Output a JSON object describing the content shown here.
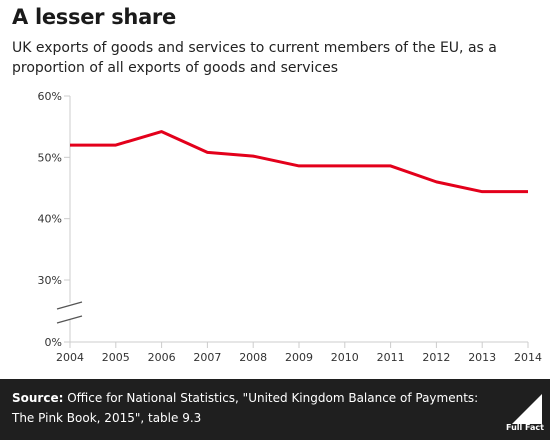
{
  "header": {
    "title": "A lesser share",
    "subtitle": "UK exports of goods and services to current members of the EU, as a proportion of all exports of goods and services"
  },
  "footer": {
    "source_label": "Source:",
    "source_text": " Office for National Statistics, \"United Kingdom Balance of Payments: The Pink Book, 2015\", table 9.3",
    "logo_text": "Full Fact"
  },
  "colors": {
    "line": "#e3001b",
    "axis": "#cccccc",
    "text": "#333333",
    "footer_bg": "#1f1f1f"
  },
  "chart_data": {
    "type": "line",
    "title": "A lesser share",
    "subtitle": "UK exports of goods and services to current members of the EU, as a proportion of all exports of goods and services",
    "x": [
      2004,
      2005,
      2006,
      2007,
      2008,
      2009,
      2010,
      2011,
      2012,
      2013,
      2014
    ],
    "series": [
      {
        "values": [
          52,
          52,
          54.2,
          50.8,
          50.2,
          48.6,
          48.6,
          48.6,
          46,
          44.4,
          44.4
        ]
      }
    ],
    "y_ticks": [
      "60%",
      "50%",
      "40%",
      "30%",
      "0%"
    ],
    "y_tick_values": [
      60,
      50,
      40,
      30,
      0
    ],
    "ylim": [
      0,
      60
    ],
    "broken_axis": true,
    "axis_break_between": [
      0,
      30
    ],
    "grid": false,
    "xlabel": "",
    "ylabel": ""
  }
}
